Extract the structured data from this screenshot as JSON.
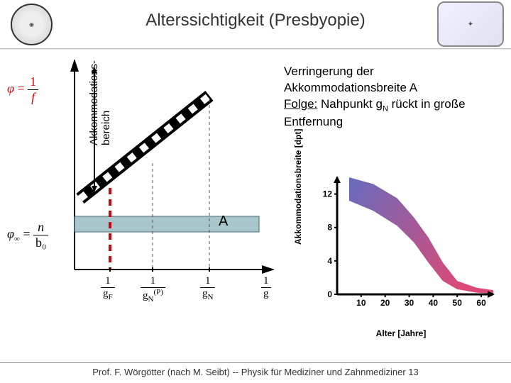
{
  "title": "Alterssichtigkeit (Presbyopie)",
  "footer": "Prof. F. Wörgötter (nach M. Seibt) -- Physik für Mediziner und Zahnmediziner  13",
  "body_text": {
    "line1": "Verringerung der Akkommodationsbreite A",
    "folge_label": "Folge:",
    "folge_rest": " Nahpunkt g",
    "folge_sub": "N",
    "folge_end": " rückt in große Entfernung"
  },
  "left_diagram": {
    "phi_label": "φ",
    "phi_eq": " = ",
    "frac1_num": "1",
    "frac1_den": "f",
    "phi_inf": "φ",
    "inf_sym": "∞",
    "eq2": " = ",
    "frac2_num": "n",
    "frac2_den": "b₀",
    "xaxis_ticks": [
      {
        "num": "1",
        "den": "g",
        "sub": "F"
      },
      {
        "num": "1",
        "den": "g",
        "sub": "N",
        "sup": "(P)"
      },
      {
        "num": "1",
        "den": "g",
        "sub": "N"
      }
    ],
    "xaxis_end": {
      "num": "1",
      "den": "g"
    },
    "A_label": "A",
    "rotated_label": "Akkommodations-\nbereich",
    "colors": {
      "axis": "#000",
      "bar_fill": "#a8c5cc",
      "bar_stroke": "#4a6a72",
      "red": "#d10808",
      "dash": "#333"
    }
  },
  "right_chart": {
    "type": "area",
    "ylabel": "Akkommodationsbreite [dpt]",
    "xlabel": "Alter [Jahre]",
    "xlim": [
      0,
      65
    ],
    "ylim": [
      0,
      14
    ],
    "yticks": [
      0,
      4,
      8,
      12
    ],
    "xticks": [
      10,
      20,
      30,
      40,
      50,
      60
    ],
    "colors": {
      "axis": "#000",
      "fill_start": "#5a5fb8",
      "fill_end": "#d83a6a",
      "background": "#ffffff"
    },
    "upper_curve": [
      [
        5,
        14
      ],
      [
        15,
        13.2
      ],
      [
        25,
        11.5
      ],
      [
        32,
        9.2
      ],
      [
        38,
        6.8
      ],
      [
        44,
        3.8
      ],
      [
        50,
        1.6
      ],
      [
        58,
        0.8
      ],
      [
        65,
        0.5
      ]
    ],
    "lower_curve": [
      [
        5,
        11.2
      ],
      [
        15,
        10
      ],
      [
        25,
        8.2
      ],
      [
        32,
        6.2
      ],
      [
        38,
        3.8
      ],
      [
        44,
        1.6
      ],
      [
        50,
        0.6
      ],
      [
        58,
        0.2
      ],
      [
        65,
        0.1
      ]
    ],
    "axis_width": 3
  }
}
